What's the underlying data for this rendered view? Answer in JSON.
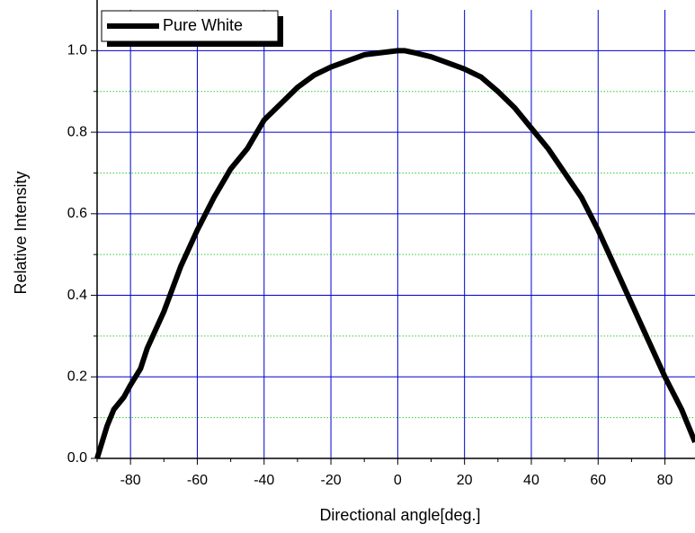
{
  "chart_data": {
    "type": "line",
    "x_label": "Directional angle[deg.]",
    "y_label": "Relative Intensity",
    "x": [
      -90,
      -87,
      -85,
      -82,
      -80,
      -77,
      -75,
      -70,
      -65,
      -60,
      -55,
      -50,
      -45,
      -40,
      -35,
      -30,
      -25,
      -20,
      -15,
      -10,
      -5,
      0,
      2,
      5,
      10,
      15,
      20,
      25,
      30,
      35,
      40,
      45,
      50,
      55,
      60,
      65,
      70,
      75,
      80,
      85,
      89
    ],
    "series": [
      {
        "name": "Pure White",
        "color": "#000000",
        "values": [
          0.0,
          0.08,
          0.12,
          0.15,
          0.18,
          0.22,
          0.27,
          0.36,
          0.47,
          0.56,
          0.64,
          0.71,
          0.76,
          0.83,
          0.87,
          0.91,
          0.94,
          0.96,
          0.975,
          0.99,
          0.995,
          1.0,
          1.0,
          0.995,
          0.985,
          0.97,
          0.955,
          0.935,
          0.9,
          0.86,
          0.81,
          0.76,
          0.7,
          0.64,
          0.56,
          0.47,
          0.38,
          0.29,
          0.2,
          0.12,
          0.04
        ]
      }
    ],
    "xlim": [
      -90,
      89
    ],
    "ylim": [
      0,
      1.1
    ],
    "xticks": [
      -80,
      -60,
      -40,
      -20,
      0,
      20,
      40,
      60,
      80
    ],
    "yticks": [
      {
        "value": 0,
        "label": "0.0"
      },
      0.2,
      0.4,
      0.6,
      0.8,
      {
        "value": 1,
        "label": "1.0"
      }
    ],
    "minor_xticks": [
      -90,
      -70,
      -50,
      -30,
      -10,
      10,
      30,
      50,
      70
    ],
    "minor_yticks": [
      0.1,
      0.3,
      0.5,
      0.7,
      0.9
    ],
    "grid": true,
    "legend": "top-left"
  }
}
